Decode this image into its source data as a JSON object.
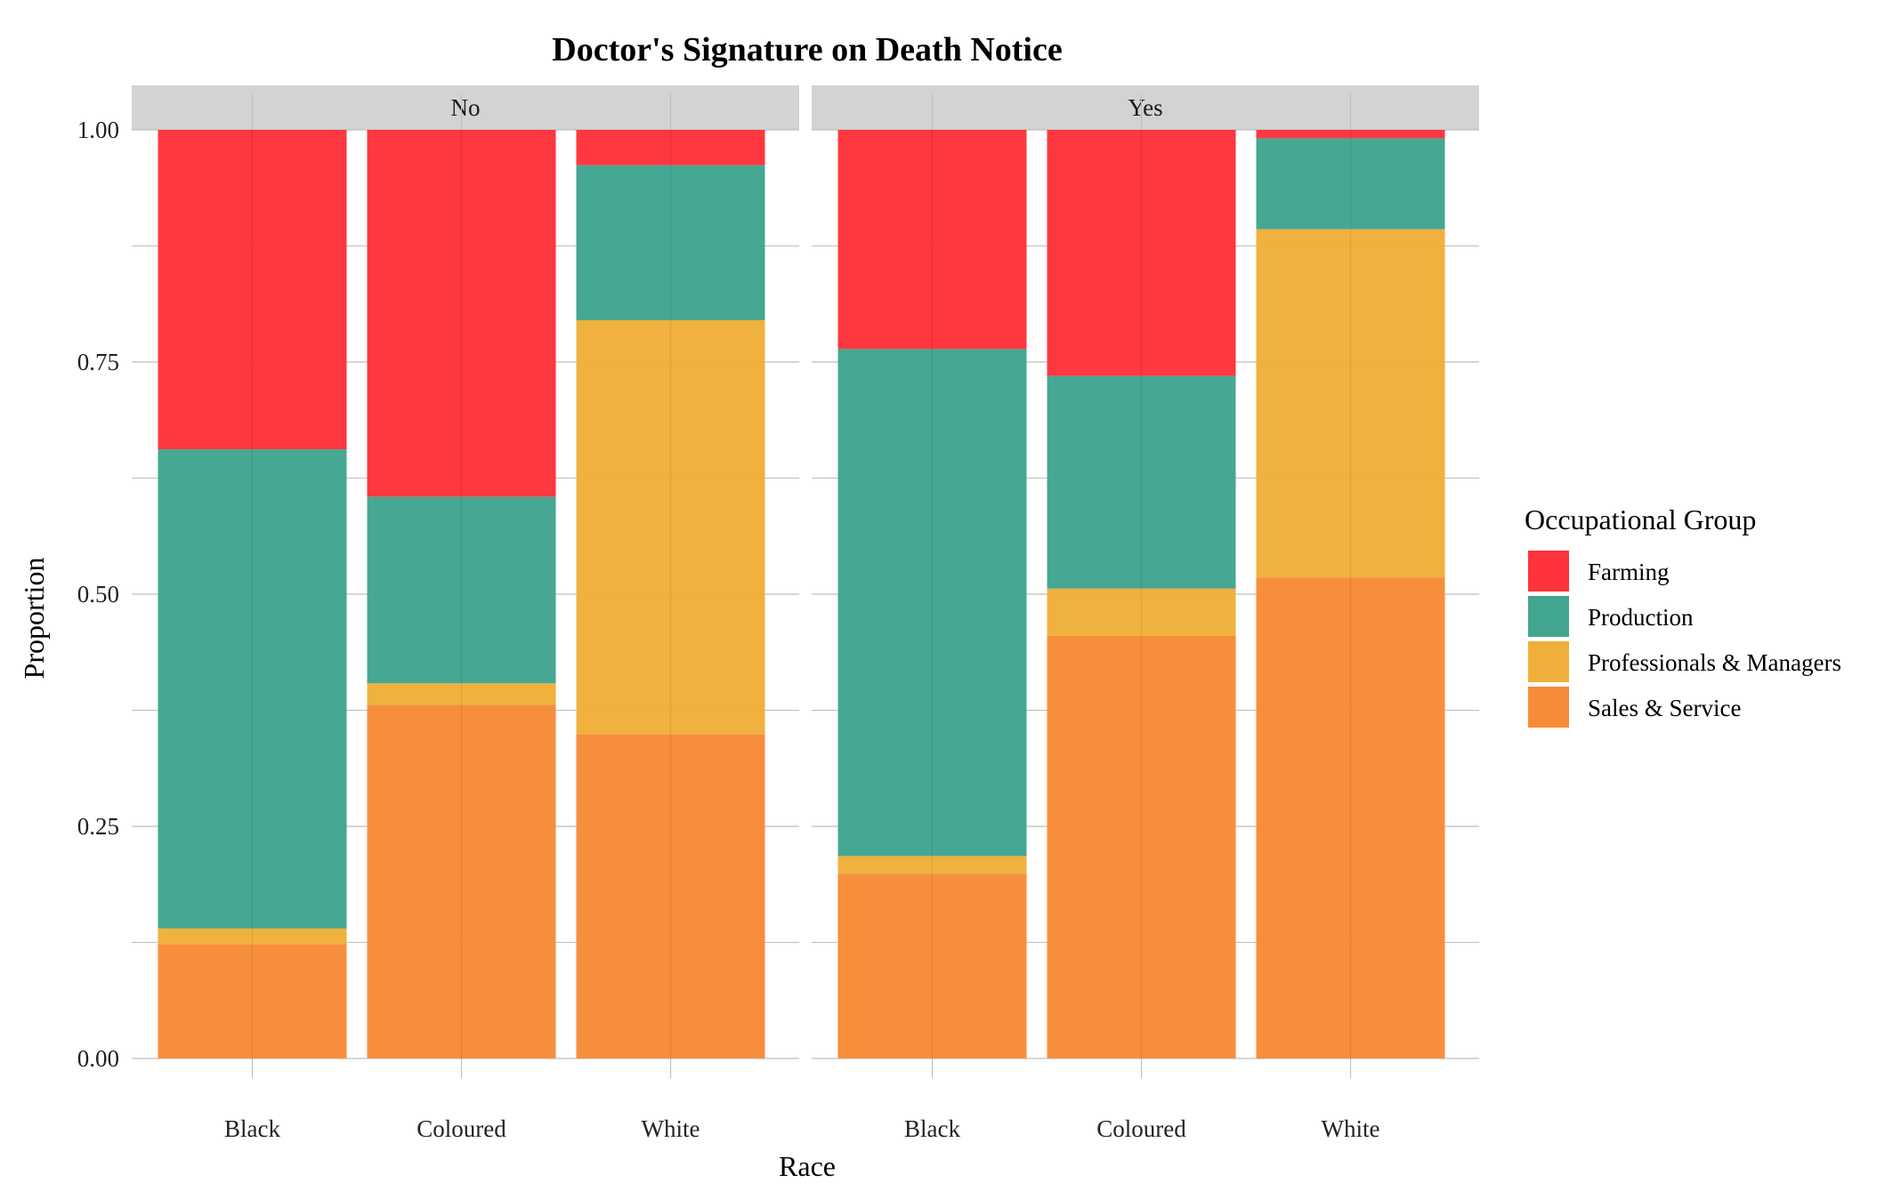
{
  "chart_data": {
    "type": "bar",
    "stacked": true,
    "title": "Doctor's Signature on Death Notice",
    "xlabel": "Race",
    "ylabel": "Proportion",
    "ylim": [
      0,
      1
    ],
    "yticks": [
      "0.00",
      "0.25",
      "0.50",
      "0.75",
      "1.00"
    ],
    "grid": true,
    "legend": {
      "title": "Occupational Group",
      "position": "right"
    },
    "categories": [
      "Black",
      "Coloured",
      "White"
    ],
    "stack_order": [
      "Sales & Service",
      "Professionals & Managers",
      "Production",
      "Farming"
    ],
    "series_meta": [
      {
        "name": "Farming",
        "color": "#FF333C"
      },
      {
        "name": "Production",
        "color": "#42A590"
      },
      {
        "name": "Professionals & Managers",
        "color": "#F0AF3A"
      },
      {
        "name": "Sales & Service",
        "color": "#F78C38"
      }
    ],
    "facets": [
      {
        "label": "No",
        "series": [
          {
            "name": "Sales & Service",
            "values": [
              0.123,
              0.381,
              0.349
            ]
          },
          {
            "name": "Professionals & Managers",
            "values": [
              0.017,
              0.023,
              0.446
            ]
          },
          {
            "name": "Production",
            "values": [
              0.516,
              0.201,
              0.167
            ]
          },
          {
            "name": "Farming",
            "values": [
              0.344,
              0.395,
              0.038
            ]
          }
        ]
      },
      {
        "label": "Yes",
        "series": [
          {
            "name": "Sales & Service",
            "values": [
              0.199,
              0.455,
              0.518
            ]
          },
          {
            "name": "Professionals & Managers",
            "values": [
              0.019,
              0.051,
              0.375
            ]
          },
          {
            "name": "Production",
            "values": [
              0.546,
              0.229,
              0.098
            ]
          },
          {
            "name": "Farming",
            "values": [
              0.236,
              0.265,
              0.009
            ]
          }
        ]
      }
    ]
  }
}
